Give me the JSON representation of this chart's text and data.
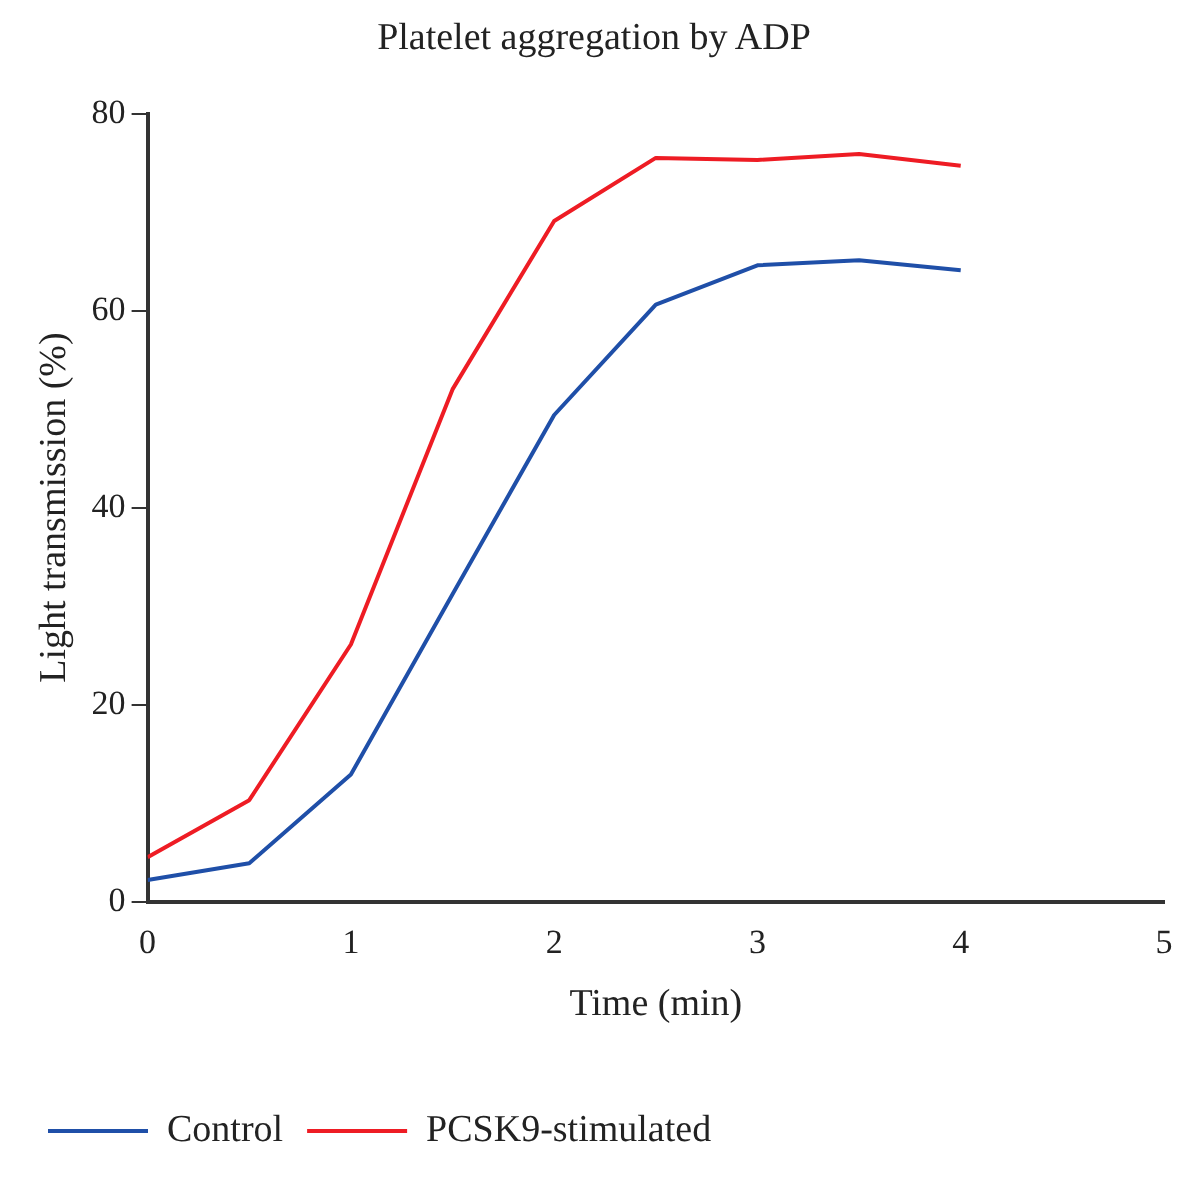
{
  "chart_data": {
    "type": "line",
    "title": "Platelet aggregation by ADP",
    "xlabel": "Time (min)",
    "ylabel": "Light transmission (%)",
    "x": [
      0,
      0.5,
      1,
      1.5,
      2,
      2.5,
      3,
      3.5,
      4
    ],
    "series": [
      {
        "name": "Control",
        "color": "#1f4fa8",
        "values": [
          2.2,
          3.9,
          12.9,
          31.2,
          49.4,
          60.6,
          64.6,
          65.1,
          64.1
        ]
      },
      {
        "name": "PCSK9-stimulated",
        "color": "#ee1c24",
        "values": [
          4.5,
          10.3,
          26.1,
          52.0,
          69.1,
          75.5,
          75.3,
          75.9,
          74.7
        ]
      }
    ],
    "xlim": [
      0,
      5
    ],
    "xticks": [
      0,
      1,
      2,
      3,
      4,
      5
    ],
    "ylim": [
      0,
      80
    ],
    "yticks": [
      0,
      20,
      40,
      60,
      80
    ],
    "grid": false,
    "legend": "bottom",
    "marker": "none",
    "line_style": "solid"
  }
}
